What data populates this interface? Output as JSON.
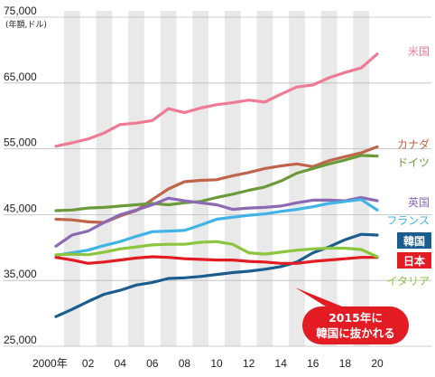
{
  "chart_data": {
    "type": "line",
    "ylabel": "(年額,ドル)",
    "ylim": [
      25000,
      75000
    ],
    "y_ticks": [
      "75,000",
      "65,000",
      "55,000",
      "45,000",
      "35,000",
      "25,000"
    ],
    "y_tick_values": [
      75000,
      65000,
      55000,
      45000,
      35000,
      25000
    ],
    "x": [
      2000,
      2001,
      2002,
      2003,
      2004,
      2005,
      2006,
      2007,
      2008,
      2009,
      2010,
      2011,
      2012,
      2013,
      2014,
      2015,
      2016,
      2017,
      2018,
      2019,
      2020
    ],
    "x_ticks": [
      {
        "year": 2000,
        "label": "2000年"
      },
      {
        "year": 2002,
        "label": "02"
      },
      {
        "year": 2004,
        "label": "04"
      },
      {
        "year": 2006,
        "label": "06"
      },
      {
        "year": 2008,
        "label": "08"
      },
      {
        "year": 2010,
        "label": "10"
      },
      {
        "year": 2012,
        "label": "12"
      },
      {
        "year": 2014,
        "label": "14"
      },
      {
        "year": 2016,
        "label": "16"
      },
      {
        "year": 2018,
        "label": "18"
      },
      {
        "year": 2020,
        "label": "20"
      }
    ],
    "grid": "alternating vertical bands per year",
    "series": [
      {
        "name": "米国",
        "color": "#ef7a95",
        "label_style": "text",
        "values": [
          55400,
          55900,
          56500,
          57400,
          58700,
          58900,
          59300,
          61100,
          60500,
          61200,
          61700,
          62000,
          62400,
          62100,
          63300,
          64400,
          64700,
          65800,
          66600,
          67300,
          69400
        ]
      },
      {
        "name": "カナダ",
        "color": "#c0644a",
        "label_style": "text",
        "values": [
          44300,
          44200,
          43900,
          43800,
          44800,
          45600,
          47300,
          48900,
          50000,
          50200,
          50300,
          50900,
          51400,
          52000,
          52400,
          52700,
          52300,
          53200,
          53800,
          54400,
          55300
        ]
      },
      {
        "name": "ドイツ",
        "color": "#6a9a3a",
        "label_style": "text",
        "values": [
          45600,
          45700,
          46000,
          46100,
          46300,
          46500,
          46700,
          46500,
          46800,
          47000,
          47600,
          48100,
          48700,
          49200,
          50100,
          51300,
          52000,
          52700,
          53300,
          54000,
          53900
        ]
      },
      {
        "name": "英国",
        "color": "#8b6ab3",
        "label_style": "text",
        "values": [
          40200,
          41900,
          42500,
          43800,
          45000,
          45700,
          46500,
          47500,
          47100,
          46800,
          46500,
          45800,
          46000,
          46100,
          46300,
          46800,
          47200,
          47200,
          47100,
          47600,
          47100
        ]
      },
      {
        "name": "フランス",
        "color": "#3fb4e6",
        "label_style": "text",
        "values": [
          38800,
          39200,
          39600,
          40300,
          40900,
          41700,
          42400,
          42500,
          42600,
          43400,
          44300,
          44600,
          44900,
          45100,
          45500,
          45800,
          46200,
          46700,
          47000,
          47300,
          45700
        ]
      },
      {
        "name": "韓国",
        "color": "#1b5d8f",
        "label_style": "box",
        "values": [
          29500,
          30600,
          31800,
          32900,
          33500,
          34300,
          34700,
          35300,
          35400,
          35600,
          35900,
          36200,
          36400,
          36700,
          37100,
          37800,
          39200,
          40100,
          41200,
          42000,
          41900
        ]
      },
      {
        "name": "日本",
        "color": "#e31b23",
        "label_style": "box",
        "values": [
          38500,
          38100,
          37600,
          37800,
          38100,
          38400,
          38600,
          38500,
          38300,
          38200,
          38100,
          38100,
          37900,
          37800,
          37600,
          37600,
          37900,
          38100,
          38300,
          38500,
          38500
        ]
      },
      {
        "name": "イタリア",
        "color": "#8cc63f",
        "label_style": "text",
        "values": [
          38900,
          39000,
          38900,
          39300,
          39800,
          40100,
          40400,
          40500,
          40500,
          40800,
          40900,
          40500,
          39200,
          39000,
          39300,
          39600,
          39800,
          39900,
          39900,
          39700,
          38600
        ]
      }
    ],
    "annotations": [
      {
        "text_lines": [
          "2015年に",
          "韓国に抜かれる"
        ],
        "color": "#e31b23",
        "points_to_year": 2015
      }
    ]
  }
}
